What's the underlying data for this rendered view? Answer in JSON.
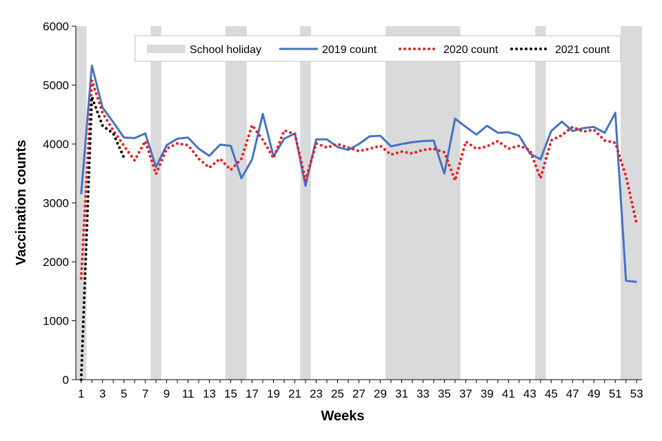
{
  "chart_data": {
    "type": "line",
    "title": "",
    "xlabel": "Weeks",
    "ylabel": "Vaccination counts",
    "xlim": [
      1,
      53
    ],
    "ylim": [
      0,
      6000
    ],
    "y_ticks": [
      0,
      1000,
      2000,
      3000,
      4000,
      5000,
      6000
    ],
    "x_ticks": [
      1,
      3,
      5,
      7,
      9,
      11,
      13,
      15,
      17,
      19,
      21,
      23,
      25,
      27,
      29,
      31,
      33,
      35,
      37,
      39,
      41,
      43,
      45,
      47,
      49,
      51,
      53
    ],
    "grid": false,
    "legend_position": "top",
    "holiday_label": "School holiday",
    "holiday_color": "#d9dadc",
    "school_holiday_weeks": [
      [
        0.5,
        1.5
      ],
      [
        7.5,
        8.5
      ],
      [
        14.5,
        16.5
      ],
      [
        21.5,
        22.5
      ],
      [
        29.5,
        36.5
      ],
      [
        43.5,
        44.5
      ],
      [
        51.5,
        53.5
      ]
    ],
    "series": [
      {
        "name": "2019 count",
        "color": "#4472c4",
        "style": "solid",
        "x": [
          1,
          2,
          3,
          4,
          5,
          6,
          7,
          8,
          9,
          10,
          11,
          12,
          13,
          14,
          15,
          16,
          17,
          18,
          19,
          20,
          21,
          22,
          23,
          24,
          25,
          26,
          27,
          28,
          29,
          30,
          31,
          32,
          33,
          34,
          35,
          36,
          37,
          38,
          39,
          40,
          41,
          42,
          43,
          44,
          45,
          46,
          47,
          48,
          49,
          50,
          51,
          52,
          53
        ],
        "values": [
          3150,
          5330,
          4620,
          4370,
          4110,
          4100,
          4180,
          3610,
          3980,
          4090,
          4110,
          3920,
          3800,
          3990,
          3970,
          3420,
          3740,
          4510,
          3790,
          4090,
          4180,
          3290,
          4080,
          4080,
          3950,
          3900,
          4000,
          4130,
          4140,
          3960,
          4000,
          4030,
          4050,
          4060,
          3500,
          4430,
          4290,
          4160,
          4310,
          4190,
          4200,
          4140,
          3840,
          3740,
          4220,
          4380,
          4220,
          4270,
          4290,
          4190,
          4530,
          1680,
          1660
        ]
      },
      {
        "name": "2020 count",
        "color": "#ee1c1c",
        "style": "dotted",
        "x": [
          1,
          2,
          3,
          4,
          5,
          6,
          7,
          8,
          9,
          10,
          11,
          12,
          13,
          14,
          15,
          16,
          17,
          18,
          19,
          20,
          21,
          22,
          23,
          24,
          25,
          26,
          27,
          28,
          29,
          30,
          31,
          32,
          33,
          34,
          35,
          36,
          37,
          38,
          39,
          40,
          41,
          42,
          43,
          44,
          45,
          46,
          47,
          48,
          49,
          50,
          51,
          52,
          53
        ],
        "values": [
          1720,
          5080,
          4530,
          4230,
          3970,
          3720,
          4050,
          3490,
          3920,
          4010,
          3980,
          3750,
          3600,
          3750,
          3560,
          3750,
          4320,
          4070,
          3760,
          4230,
          4170,
          3380,
          4010,
          3940,
          4000,
          3940,
          3880,
          3920,
          3970,
          3820,
          3870,
          3840,
          3900,
          3920,
          3860,
          3380,
          4040,
          3920,
          3960,
          4050,
          3920,
          3970,
          3900,
          3420,
          4060,
          4150,
          4290,
          4210,
          4240,
          4060,
          4020,
          3450,
          2640
        ]
      },
      {
        "name": "2021 count",
        "color": "#000000",
        "style": "dotted",
        "x": [
          1,
          2,
          3,
          4,
          5
        ],
        "values": [
          0,
          4800,
          4310,
          4180,
          3770
        ]
      }
    ]
  }
}
